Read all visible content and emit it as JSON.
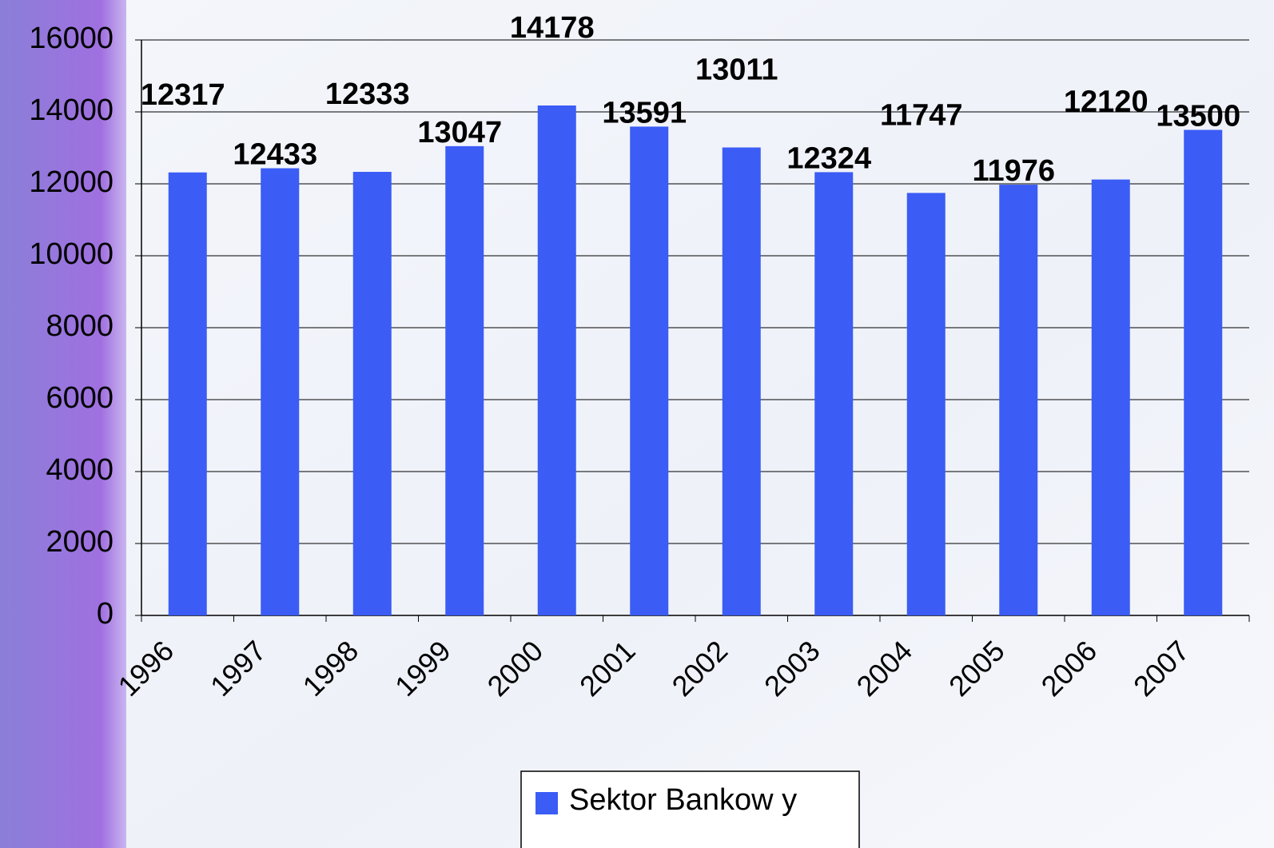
{
  "chart_data": {
    "type": "bar",
    "categories": [
      "1996",
      "1997",
      "1998",
      "1999",
      "2000",
      "2001",
      "2002",
      "2003",
      "2004",
      "2005",
      "2006",
      "2007"
    ],
    "series": [
      {
        "name": "Sektor Bankow y",
        "color": "#3b5cf5",
        "values": [
          12317,
          12433,
          12333,
          13047,
          14178,
          13591,
          13011,
          12324,
          11747,
          11976,
          12120,
          13500
        ]
      }
    ],
    "ylim": [
      0,
      16000
    ],
    "yticks": [
      0,
      2000,
      4000,
      6000,
      8000,
      10000,
      12000,
      14000,
      16000
    ],
    "grid": true
  }
}
